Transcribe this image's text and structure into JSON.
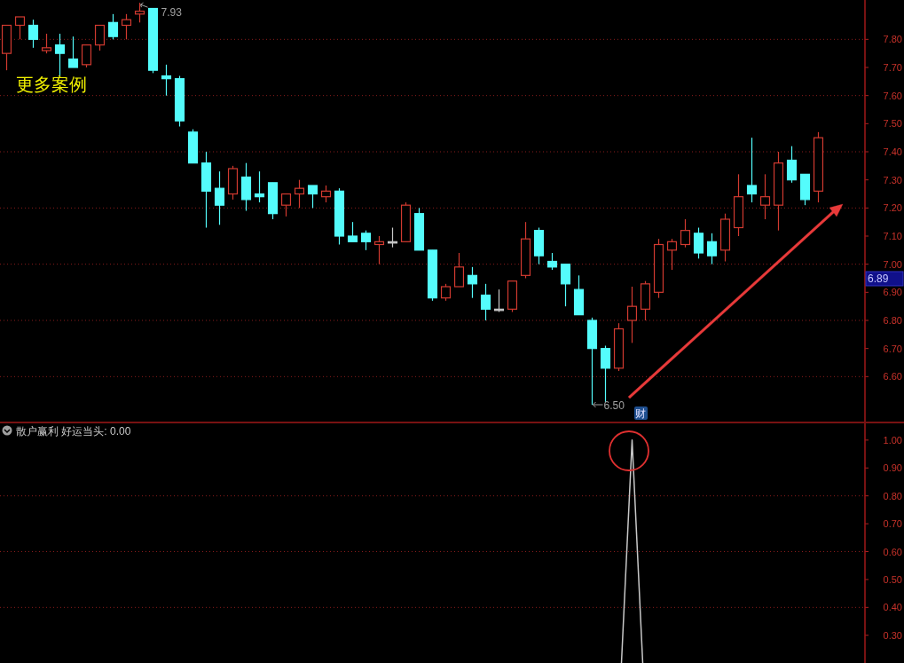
{
  "chart_data": [
    {
      "type": "candlestick",
      "categories": [
        null,
        null,
        null,
        null,
        null,
        null,
        null,
        null,
        null,
        null,
        null,
        null,
        null,
        null,
        null,
        null,
        null,
        null,
        null,
        null,
        null,
        null,
        null,
        null,
        null,
        null,
        null,
        null,
        null,
        null,
        null,
        null,
        null,
        null,
        null,
        null,
        null,
        null,
        null,
        null,
        null,
        null,
        null,
        null,
        null,
        null,
        null,
        null,
        null,
        null,
        null,
        null,
        null,
        null,
        null,
        null,
        null,
        null,
        null,
        null,
        null,
        null,
        null,
        null,
        null
      ],
      "ohlc": [
        [
          7.75,
          7.85,
          7.69,
          7.85
        ],
        [
          7.85,
          7.88,
          7.8,
          7.88
        ],
        [
          7.85,
          7.87,
          7.77,
          7.8
        ],
        [
          7.76,
          7.82,
          7.75,
          7.77
        ],
        [
          7.78,
          7.82,
          7.67,
          7.75
        ],
        [
          7.73,
          7.81,
          7.7,
          7.7
        ],
        [
          7.71,
          7.78,
          7.7,
          7.78
        ],
        [
          7.78,
          7.85,
          7.76,
          7.85
        ],
        [
          7.86,
          7.89,
          7.8,
          7.81
        ],
        [
          7.85,
          7.89,
          7.8,
          7.87
        ],
        [
          7.89,
          7.93,
          7.86,
          7.9
        ],
        [
          7.91,
          7.91,
          7.68,
          7.69
        ],
        [
          7.67,
          7.71,
          7.6,
          7.66
        ],
        [
          7.66,
          7.67,
          7.49,
          7.51
        ],
        [
          7.47,
          7.48,
          7.36,
          7.36
        ],
        [
          7.36,
          7.4,
          7.13,
          7.26
        ],
        [
          7.27,
          7.33,
          7.14,
          7.21
        ],
        [
          7.25,
          7.35,
          7.23,
          7.34
        ],
        [
          7.31,
          7.36,
          7.19,
          7.23
        ],
        [
          7.25,
          7.33,
          7.22,
          7.24
        ],
        [
          7.29,
          7.29,
          7.16,
          7.18
        ],
        [
          7.21,
          7.25,
          7.17,
          7.25
        ],
        [
          7.25,
          7.3,
          7.2,
          7.27
        ],
        [
          7.28,
          7.28,
          7.2,
          7.25
        ],
        [
          7.24,
          7.28,
          7.22,
          7.26
        ],
        [
          7.26,
          7.27,
          7.07,
          7.1
        ],
        [
          7.1,
          7.15,
          7.08,
          7.08
        ],
        [
          7.11,
          7.12,
          7.05,
          7.08
        ],
        [
          7.07,
          7.1,
          7.0,
          7.08
        ],
        [
          7.08,
          7.13,
          7.06,
          7.08
        ],
        [
          7.08,
          7.22,
          7.08,
          7.21
        ],
        [
          7.18,
          7.2,
          7.05,
          7.05
        ],
        [
          7.05,
          7.05,
          6.87,
          6.88
        ],
        [
          6.88,
          6.93,
          6.87,
          6.92
        ],
        [
          6.92,
          7.04,
          6.92,
          6.99
        ],
        [
          6.96,
          6.99,
          6.88,
          6.93
        ],
        [
          6.89,
          6.93,
          6.8,
          6.84
        ],
        [
          6.84,
          6.91,
          6.83,
          6.84
        ],
        [
          6.84,
          6.94,
          6.83,
          6.94
        ],
        [
          6.96,
          7.15,
          6.95,
          7.09
        ],
        [
          7.12,
          7.13,
          7.0,
          7.03
        ],
        [
          7.01,
          7.04,
          6.98,
          6.99
        ],
        [
          7.0,
          7.0,
          6.85,
          6.93
        ],
        [
          6.91,
          6.96,
          6.82,
          6.82
        ],
        [
          6.8,
          6.81,
          6.5,
          6.7
        ],
        [
          6.7,
          6.71,
          6.51,
          6.63
        ],
        [
          6.63,
          6.79,
          6.62,
          6.77
        ],
        [
          6.8,
          6.92,
          6.72,
          6.85
        ],
        [
          6.84,
          6.94,
          6.8,
          6.93
        ],
        [
          6.9,
          7.09,
          6.88,
          7.07
        ],
        [
          7.05,
          7.09,
          6.98,
          7.08
        ],
        [
          7.07,
          7.16,
          7.06,
          7.12
        ],
        [
          7.11,
          7.13,
          7.02,
          7.04
        ],
        [
          7.08,
          7.11,
          7.0,
          7.03
        ],
        [
          7.05,
          7.18,
          7.01,
          7.16
        ],
        [
          7.13,
          7.32,
          7.1,
          7.24
        ],
        [
          7.28,
          7.45,
          7.22,
          7.25
        ],
        [
          7.21,
          7.32,
          7.16,
          7.24
        ],
        [
          7.21,
          7.4,
          7.12,
          7.36
        ],
        [
          7.37,
          7.42,
          7.29,
          7.3
        ],
        [
          7.32,
          7.32,
          7.21,
          7.23
        ],
        [
          7.26,
          7.47,
          7.22,
          7.45
        ],
        null,
        null,
        null
      ],
      "colors": [
        "#d23a30",
        "#d23a30",
        "#54fcfc",
        "#d23a30",
        "#54fcfc",
        "#54fcfc",
        "#d23a30",
        "#d23a30",
        "#54fcfc",
        "#d23a30",
        "#d23a30",
        "#54fcfc",
        "#54fcfc",
        "#54fcfc",
        "#54fcfc",
        "#54fcfc",
        "#54fcfc",
        "#d23a30",
        "#54fcfc",
        "#54fcfc",
        "#54fcfc",
        "#d23a30",
        "#d23a30",
        "#54fcfc",
        "#d23a30",
        "#54fcfc",
        "#54fcfc",
        "#54fcfc",
        "#d23a30",
        "#c8c8c8",
        "#d23a30",
        "#54fcfc",
        "#54fcfc",
        "#d23a30",
        "#d23a30",
        "#54fcfc",
        "#54fcfc",
        "#c8c8c8",
        "#d23a30",
        "#d23a30",
        "#54fcfc",
        "#54fcfc",
        "#54fcfc",
        "#54fcfc",
        "#54fcfc",
        "#54fcfc",
        "#d23a30",
        "#d23a30",
        "#d23a30",
        "#d23a30",
        "#d23a30",
        "#d23a30",
        "#54fcfc",
        "#54fcfc",
        "#d23a30",
        "#d23a30",
        "#54fcfc",
        "#d23a30",
        "#d23a30",
        "#54fcfc",
        "#54fcfc",
        "#d23a30",
        null,
        null,
        null
      ],
      "ylim": [
        6.44,
        7.94
      ],
      "yticks": [
        {
          "value": 6.6,
          "label": "6.60"
        },
        {
          "value": 6.7,
          "label": "6.70"
        },
        {
          "value": 6.8,
          "label": "6.80"
        },
        {
          "value": 6.9,
          "label": "6.90"
        },
        {
          "value": 7.0,
          "label": "7.00"
        },
        {
          "value": 7.1,
          "label": "7.10"
        },
        {
          "value": 7.2,
          "label": "7.20"
        },
        {
          "value": 7.3,
          "label": "7.30"
        },
        {
          "value": 7.4,
          "label": "7.40"
        },
        {
          "value": 7.5,
          "label": "7.50"
        },
        {
          "value": 7.6,
          "label": "7.60"
        },
        {
          "value": 7.7,
          "label": "7.70"
        },
        {
          "value": 7.8,
          "label": "7.80"
        }
      ],
      "ref_lines": [
        {
          "axis": "y",
          "value": 6.6,
          "color": "#8a1c1c",
          "line_style": "dotted"
        },
        {
          "axis": "y",
          "value": 6.8,
          "color": "#8a1c1c",
          "line_style": "dotted"
        },
        {
          "axis": "y",
          "value": 7.0,
          "color": "#8a1c1c",
          "line_style": "dotted"
        },
        {
          "axis": "y",
          "value": 7.2,
          "color": "#8a1c1c",
          "line_style": "dotted"
        },
        {
          "axis": "y",
          "value": 7.4,
          "color": "#8a1c1c",
          "line_style": "dotted"
        },
        {
          "axis": "y",
          "value": 7.6,
          "color": "#8a1c1c",
          "line_style": "dotted"
        },
        {
          "axis": "y",
          "value": 7.8,
          "color": "#8a1c1c",
          "line_style": "dotted"
        }
      ],
      "annotations": [
        "7.93",
        "6.50",
        "6.89",
        "更多案例",
        "财"
      ],
      "tick_labels": "y"
    },
    {
      "type": "line",
      "title": "散户赢利 好运当头: 0.00",
      "categories": [
        null,
        null,
        null,
        null,
        null,
        null,
        null,
        null,
        null,
        null,
        null,
        null,
        null,
        null,
        null,
        null,
        null,
        null,
        null,
        null,
        null,
        null,
        null,
        null,
        null,
        null,
        null,
        null,
        null,
        null,
        null,
        null,
        null,
        null,
        null,
        null,
        null,
        null,
        null,
        null,
        null,
        null,
        null,
        null,
        null,
        null,
        null,
        null,
        null,
        null,
        null,
        null,
        null,
        null,
        null,
        null,
        null,
        null,
        null,
        null,
        null,
        null,
        null,
        null,
        null
      ],
      "series": [
        {
          "color": "#c8c8c8",
          "values": [
            null,
            null,
            null,
            null,
            null,
            null,
            null,
            null,
            null,
            null,
            null,
            null,
            null,
            null,
            null,
            null,
            null,
            null,
            null,
            null,
            null,
            null,
            null,
            null,
            null,
            null,
            null,
            null,
            null,
            null,
            null,
            null,
            null,
            null,
            null,
            null,
            null,
            null,
            null,
            null,
            null,
            null,
            null,
            null,
            null,
            null,
            0,
            1.0,
            0,
            null,
            null,
            null,
            null,
            null,
            null,
            null,
            null,
            null,
            null,
            null,
            null,
            null,
            null,
            null,
            null
          ]
        }
      ],
      "ylim": [
        0,
        1.06
      ],
      "yticks": [
        {
          "value": 0.3,
          "label": "0.30"
        },
        {
          "value": 0.4,
          "label": "0.40"
        },
        {
          "value": 0.5,
          "label": "0.50"
        },
        {
          "value": 0.6,
          "label": "0.60"
        },
        {
          "value": 0.7,
          "label": "0.70"
        },
        {
          "value": 0.8,
          "label": "0.80"
        },
        {
          "value": 0.9,
          "label": "0.90"
        },
        {
          "value": 1.0,
          "label": "1.00"
        }
      ],
      "ref_lines": [
        {
          "axis": "y",
          "value": 0.4,
          "color": "#8a1c1c",
          "line_style": "dotted"
        },
        {
          "axis": "y",
          "value": 0.6,
          "color": "#8a1c1c",
          "line_style": "dotted"
        },
        {
          "axis": "y",
          "value": 0.8,
          "color": "#8a1c1c",
          "line_style": "dotted"
        }
      ],
      "tick_labels": "y"
    }
  ]
}
